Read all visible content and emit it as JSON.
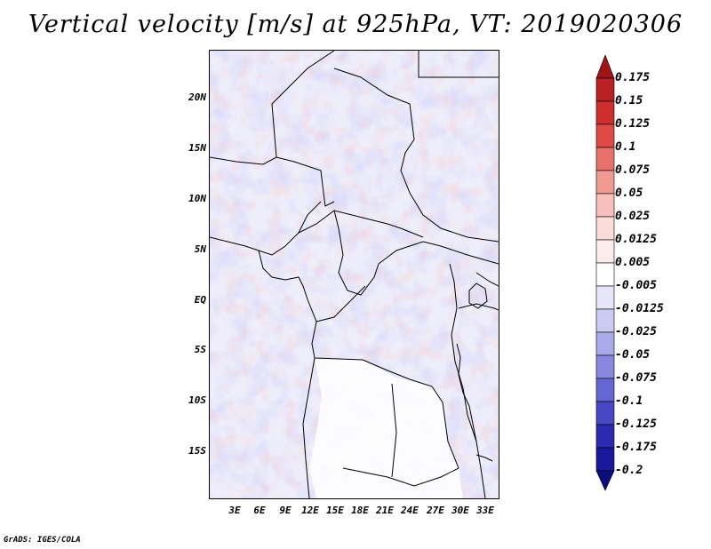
{
  "title": "Vertical velocity [m/s] at 925hPa, VT: 2019020306",
  "footer": "GrADS: IGES/COLA",
  "lat_labels": [
    "20N",
    "15N",
    "10N",
    "5N",
    "EQ",
    "5S",
    "10S",
    "15S"
  ],
  "lon_labels": [
    "3E",
    "6E",
    "9E",
    "12E",
    "15E",
    "18E",
    "21E",
    "24E",
    "27E",
    "30E",
    "33E"
  ],
  "colorbar": {
    "labels": [
      "0.175",
      "0.15",
      "0.125",
      "0.1",
      "0.075",
      "0.05",
      "0.025",
      "0.0125",
      "0.005",
      "-0.005",
      "-0.0125",
      "-0.025",
      "-0.05",
      "-0.075",
      "-0.1",
      "-0.125",
      "-0.175",
      "-0.2"
    ],
    "colors": [
      "#a01418",
      "#b82023",
      "#cc2e2e",
      "#de4a46",
      "#e8706a",
      "#f09a92",
      "#f7c0ba",
      "#fbdcd8",
      "#fdeeec",
      "#ffffff",
      "#e6e6f8",
      "#ccccf2",
      "#aaaaea",
      "#8888e0",
      "#6666d4",
      "#4848c4",
      "#2a2ab0",
      "#18189a",
      "#0c0c80"
    ]
  }
}
